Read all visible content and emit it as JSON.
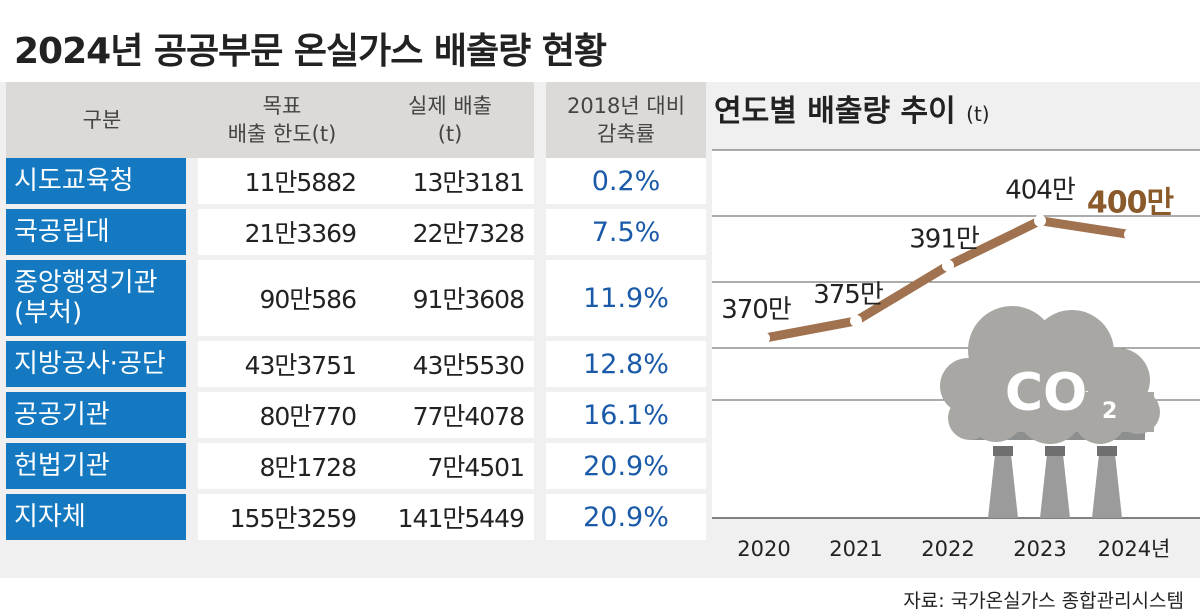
{
  "title": "2024년 공공부문 온실가스 배출량 현황",
  "table": {
    "headers": [
      "구분",
      "목표\n배출 한도(t)",
      "실제 배출\n(t)",
      "2018년 대비\n감축률"
    ],
    "rows": [
      {
        "category": "시도교육청",
        "target": "11만5882",
        "actual": "13만3181",
        "rate": "0.2%"
      },
      {
        "category": "국공립대",
        "target": "21만3369",
        "actual": "22만7328",
        "rate": "7.5%"
      },
      {
        "category": "중앙행정기관\n(부처)",
        "target": "90만586",
        "actual": "91만3608",
        "rate": "11.9%"
      },
      {
        "category": "지방공사·공단",
        "target": "43만3751",
        "actual": "43만5530",
        "rate": "12.8%"
      },
      {
        "category": "공공기관",
        "target": "80만770",
        "actual": "77만4078",
        "rate": "16.1%"
      },
      {
        "category": "헌법기관",
        "target": "8만1728",
        "actual": "7만4501",
        "rate": "20.9%"
      },
      {
        "category": "지자체",
        "target": "155만3259",
        "actual": "141만5449",
        "rate": "20.9%"
      }
    ]
  },
  "chart_data": {
    "type": "line",
    "title": "연도별 배출량 추이",
    "unit": "(t)",
    "categories": [
      "2020",
      "2021",
      "2022",
      "2023",
      "2024년"
    ],
    "values": [
      370,
      375,
      391,
      404,
      400
    ],
    "data_labels": [
      "370만",
      "375만",
      "391만",
      "404만",
      "400만"
    ],
    "ylim": [
      355,
      410
    ],
    "line_color": "#a0724f",
    "highlight_color": "#8a5a2b"
  },
  "illustration": {
    "label": "CO",
    "subscript": "2"
  },
  "source": "자료: 국가온실가스 종합관리시스템"
}
